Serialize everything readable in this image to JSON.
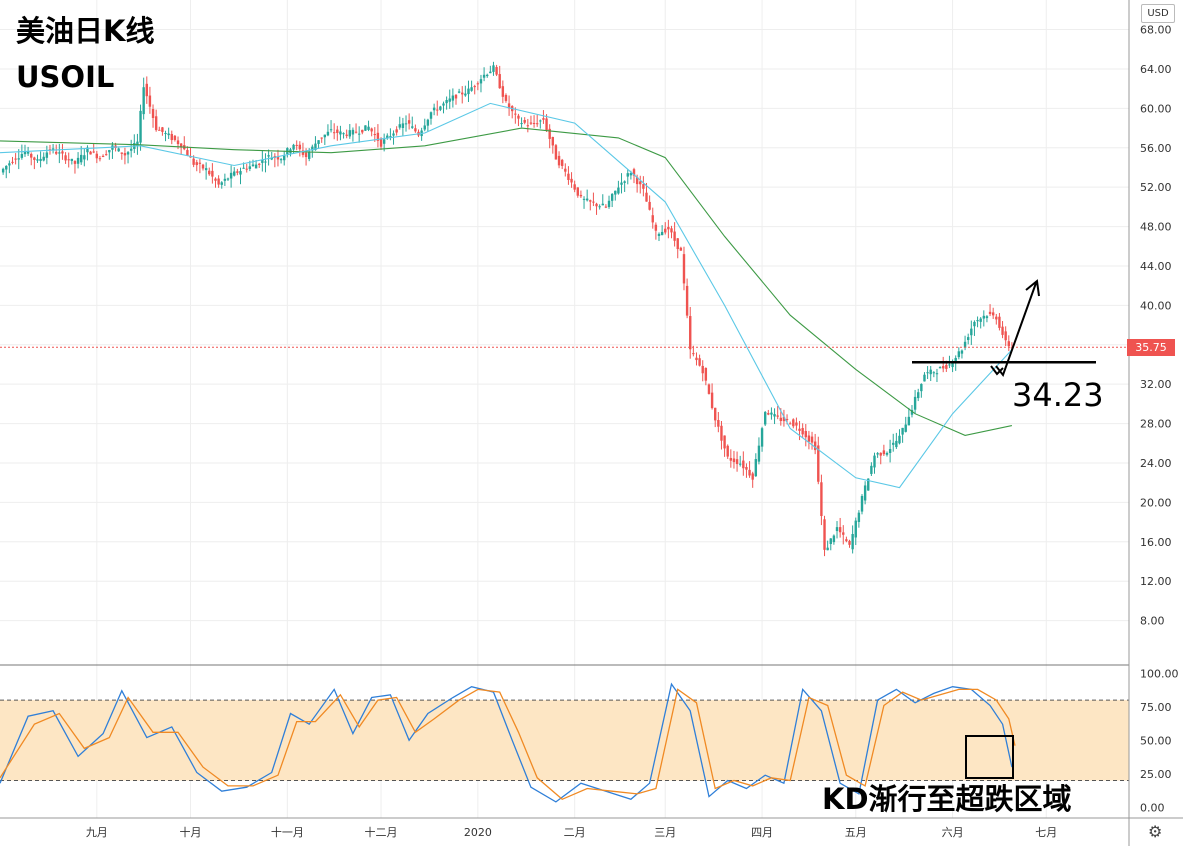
{
  "header": {
    "title": "美油日K线",
    "symbol": "USOIL"
  },
  "currency": "USD",
  "current_price": "35.75",
  "support_label": "34.23",
  "kd_note": "KD渐行至超跌区域",
  "settings_icon": "gear-icon",
  "colors": {
    "up": "#26a69a",
    "down": "#ef5350",
    "ma_fast": "#5bc8e6",
    "ma_slow": "#3d9a45",
    "k": "#2f7fd8",
    "d": "#f08a24",
    "band": "#fde6c4"
  },
  "chart_data": [
    {
      "type": "candlestick",
      "title": "美油日K线",
      "symbol": "USOIL",
      "x_ticks": [
        "九月",
        "十月",
        "十一月",
        "十二月",
        "2020",
        "二月",
        "三月",
        "四月",
        "五月",
        "六月",
        "七月"
      ],
      "y_ticks": [
        "8.00",
        "12.00",
        "16.00",
        "20.00",
        "24.00",
        "28.00",
        "32.00",
        "36.00",
        "40.00",
        "44.00",
        "48.00",
        "52.00",
        "56.00",
        "60.00",
        "64.00",
        "68.00"
      ],
      "ylim": [
        4,
        71
      ],
      "grid": true,
      "close_series": [
        [
          "2019-08-01",
          53.5
        ],
        [
          "2019-08-05",
          54.8
        ],
        [
          "2019-08-09",
          55.6
        ],
        [
          "2019-08-13",
          54.6
        ],
        [
          "2019-08-17",
          55.9
        ],
        [
          "2019-08-21",
          55.2
        ],
        [
          "2019-08-25",
          54.4
        ],
        [
          "2019-08-29",
          55.8
        ],
        [
          "2019-09-02",
          55.0
        ],
        [
          "2019-09-06",
          56.1
        ],
        [
          "2019-09-10",
          55.3
        ],
        [
          "2019-09-14",
          56.5
        ],
        [
          "2019-09-16",
          62.4
        ],
        [
          "2019-09-20",
          58.0
        ],
        [
          "2019-09-24",
          57.2
        ],
        [
          "2019-09-28",
          56.3
        ],
        [
          "2019-10-02",
          54.4
        ],
        [
          "2019-10-06",
          53.8
        ],
        [
          "2019-10-10",
          52.2
        ],
        [
          "2019-10-14",
          53.2
        ],
        [
          "2019-10-18",
          53.9
        ],
        [
          "2019-10-22",
          54.3
        ],
        [
          "2019-10-26",
          55.1
        ],
        [
          "2019-10-30",
          55.0
        ],
        [
          "2019-11-03",
          56.4
        ],
        [
          "2019-11-07",
          55.1
        ],
        [
          "2019-11-11",
          56.9
        ],
        [
          "2019-11-15",
          57.7
        ],
        [
          "2019-11-19",
          57.4
        ],
        [
          "2019-11-23",
          57.6
        ],
        [
          "2019-11-27",
          58.1
        ],
        [
          "2019-12-01",
          56.4
        ],
        [
          "2019-12-05",
          57.6
        ],
        [
          "2019-12-09",
          58.6
        ],
        [
          "2019-12-13",
          57.4
        ],
        [
          "2019-12-17",
          59.6
        ],
        [
          "2019-12-21",
          60.4
        ],
        [
          "2019-12-25",
          61.3
        ],
        [
          "2019-12-29",
          61.8
        ],
        [
          "2020-01-03",
          63.4
        ],
        [
          "2020-01-06",
          64.1
        ],
        [
          "2020-01-10",
          60.5
        ],
        [
          "2020-01-14",
          58.7
        ],
        [
          "2020-01-18",
          58.3
        ],
        [
          "2020-01-22",
          58.9
        ],
        [
          "2020-01-26",
          55.0
        ],
        [
          "2020-01-30",
          53.0
        ],
        [
          "2020-02-03",
          50.8
        ],
        [
          "2020-02-07",
          50.3
        ],
        [
          "2020-02-11",
          50.0
        ],
        [
          "2020-02-15",
          52.1
        ],
        [
          "2020-02-19",
          53.6
        ],
        [
          "2020-02-23",
          51.6
        ],
        [
          "2020-02-27",
          47.3
        ],
        [
          "2020-03-02",
          47.8
        ],
        [
          "2020-03-06",
          45.4
        ],
        [
          "2020-03-09",
          35.4
        ],
        [
          "2020-03-13",
          33.4
        ],
        [
          "2020-03-17",
          28.5
        ],
        [
          "2020-03-21",
          24.5
        ],
        [
          "2020-03-25",
          24.0
        ],
        [
          "2020-03-29",
          22.6
        ],
        [
          "2020-04-02",
          29.3
        ],
        [
          "2020-04-06",
          28.5
        ],
        [
          "2020-04-10",
          28.2
        ],
        [
          "2020-04-14",
          27.2
        ],
        [
          "2020-04-18",
          25.6
        ],
        [
          "2020-04-21",
          15.0
        ],
        [
          "2020-04-25",
          17.4
        ],
        [
          "2020-04-29",
          15.5
        ],
        [
          "2020-05-03",
          20.4
        ],
        [
          "2020-05-07",
          24.8
        ],
        [
          "2020-05-11",
          25.2
        ],
        [
          "2020-05-15",
          26.6
        ],
        [
          "2020-05-19",
          29.6
        ],
        [
          "2020-05-23",
          33.0
        ],
        [
          "2020-05-27",
          33.4
        ],
        [
          "2020-05-31",
          34.0
        ],
        [
          "2020-06-04",
          35.6
        ],
        [
          "2020-06-08",
          38.4
        ],
        [
          "2020-06-12",
          39.1
        ],
        [
          "2020-06-15",
          38.8
        ],
        [
          "2020-06-18",
          36.2
        ],
        [
          "2020-06-20",
          35.75
        ]
      ],
      "ma_fast": {
        "color": "#5bc8e6",
        "points": [
          [
            "2019-08-01",
            55.5
          ],
          [
            "2019-09-15",
            56.2
          ],
          [
            "2019-10-15",
            54.2
          ],
          [
            "2019-11-15",
            56.2
          ],
          [
            "2019-12-15",
            57.5
          ],
          [
            "2020-01-05",
            60.5
          ],
          [
            "2020-02-01",
            58.5
          ],
          [
            "2020-03-01",
            50.5
          ],
          [
            "2020-03-20",
            40.0
          ],
          [
            "2020-04-10",
            27.5
          ],
          [
            "2020-05-01",
            22.5
          ],
          [
            "2020-05-15",
            21.5
          ],
          [
            "2020-06-01",
            29.0
          ],
          [
            "2020-06-20",
            35.5
          ]
        ]
      },
      "ma_slow": {
        "color": "#3d9a45",
        "points": [
          [
            "2019-08-01",
            56.7
          ],
          [
            "2019-09-15",
            56.3
          ],
          [
            "2019-10-15",
            55.8
          ],
          [
            "2019-11-15",
            55.5
          ],
          [
            "2019-12-15",
            56.2
          ],
          [
            "2020-01-15",
            58.0
          ],
          [
            "2020-02-15",
            57.0
          ],
          [
            "2020-03-01",
            55.0
          ],
          [
            "2020-03-20",
            47.0
          ],
          [
            "2020-04-10",
            39.0
          ],
          [
            "2020-05-01",
            33.5
          ],
          [
            "2020-05-20",
            29.0
          ],
          [
            "2020-06-05",
            26.8
          ],
          [
            "2020-06-20",
            27.8
          ]
        ]
      },
      "support": {
        "value": 34.23,
        "label": "34.23"
      },
      "current_price_line": 35.75
    },
    {
      "type": "line",
      "indicator": "Stochastic (KD)",
      "y_ticks": [
        "0.00",
        "25.00",
        "50.00",
        "75.00",
        "100.00"
      ],
      "ylim": [
        -5,
        101
      ],
      "band": [
        20,
        80
      ],
      "series": [
        {
          "color": "#2f7fd8",
          "points": [
            [
              "2019-08-01",
              18
            ],
            [
              "2019-08-10",
              68
            ],
            [
              "2019-08-18",
              72
            ],
            [
              "2019-08-26",
              38
            ],
            [
              "2019-09-03",
              55
            ],
            [
              "2019-09-09",
              87
            ],
            [
              "2019-09-17",
              52
            ],
            [
              "2019-09-25",
              60
            ],
            [
              "2019-10-03",
              26
            ],
            [
              "2019-10-11",
              12
            ],
            [
              "2019-10-19",
              15
            ],
            [
              "2019-10-27",
              26
            ],
            [
              "2019-11-02",
              70
            ],
            [
              "2019-11-08",
              62
            ],
            [
              "2019-11-16",
              88
            ],
            [
              "2019-11-22",
              55
            ],
            [
              "2019-11-28",
              82
            ],
            [
              "2019-12-04",
              84
            ],
            [
              "2019-12-10",
              50
            ],
            [
              "2019-12-16",
              70
            ],
            [
              "2019-12-24",
              82
            ],
            [
              "2019-12-30",
              90
            ],
            [
              "2020-01-06",
              86
            ],
            [
              "2020-01-12",
              50
            ],
            [
              "2020-01-18",
              15
            ],
            [
              "2020-01-26",
              4
            ],
            [
              "2020-02-03",
              18
            ],
            [
              "2020-02-11",
              12
            ],
            [
              "2020-02-19",
              6
            ],
            [
              "2020-02-25",
              18
            ],
            [
              "2020-03-03",
              92
            ],
            [
              "2020-03-09",
              72
            ],
            [
              "2020-03-15",
              8
            ],
            [
              "2020-03-21",
              20
            ],
            [
              "2020-03-27",
              14
            ],
            [
              "2020-04-02",
              24
            ],
            [
              "2020-04-08",
              18
            ],
            [
              "2020-04-14",
              88
            ],
            [
              "2020-04-20",
              72
            ],
            [
              "2020-04-26",
              18
            ],
            [
              "2020-05-02",
              10
            ],
            [
              "2020-05-08",
              80
            ],
            [
              "2020-05-14",
              88
            ],
            [
              "2020-05-20",
              78
            ],
            [
              "2020-05-26",
              85
            ],
            [
              "2020-06-01",
              90
            ],
            [
              "2020-06-07",
              88
            ],
            [
              "2020-06-13",
              76
            ],
            [
              "2020-06-17",
              62
            ],
            [
              "2020-06-20",
              30
            ]
          ]
        },
        {
          "color": "#f08a24",
          "points": [
            [
              "2019-08-01",
              22
            ],
            [
              "2019-08-12",
              62
            ],
            [
              "2019-08-20",
              70
            ],
            [
              "2019-08-28",
              44
            ],
            [
              "2019-09-05",
              52
            ],
            [
              "2019-09-11",
              82
            ],
            [
              "2019-09-19",
              56
            ],
            [
              "2019-09-27",
              56
            ],
            [
              "2019-10-05",
              30
            ],
            [
              "2019-10-13",
              16
            ],
            [
              "2019-10-21",
              16
            ],
            [
              "2019-10-29",
              24
            ],
            [
              "2019-11-04",
              64
            ],
            [
              "2019-11-10",
              64
            ],
            [
              "2019-11-18",
              84
            ],
            [
              "2019-11-24",
              60
            ],
            [
              "2019-11-30",
              80
            ],
            [
              "2019-12-06",
              82
            ],
            [
              "2019-12-12",
              56
            ],
            [
              "2019-12-18",
              66
            ],
            [
              "2019-12-26",
              80
            ],
            [
              "2020-01-01",
              88
            ],
            [
              "2020-01-08",
              86
            ],
            [
              "2020-01-14",
              56
            ],
            [
              "2020-01-20",
              22
            ],
            [
              "2020-01-28",
              6
            ],
            [
              "2020-02-05",
              14
            ],
            [
              "2020-02-13",
              12
            ],
            [
              "2020-02-21",
              10
            ],
            [
              "2020-02-27",
              14
            ],
            [
              "2020-03-05",
              88
            ],
            [
              "2020-03-11",
              78
            ],
            [
              "2020-03-17",
              14
            ],
            [
              "2020-03-23",
              20
            ],
            [
              "2020-03-29",
              16
            ],
            [
              "2020-04-04",
              22
            ],
            [
              "2020-04-10",
              20
            ],
            [
              "2020-04-16",
              82
            ],
            [
              "2020-04-22",
              76
            ],
            [
              "2020-04-28",
              24
            ],
            [
              "2020-05-04",
              16
            ],
            [
              "2020-05-10",
              76
            ],
            [
              "2020-05-16",
              86
            ],
            [
              "2020-05-22",
              80
            ],
            [
              "2020-05-28",
              84
            ],
            [
              "2020-06-03",
              88
            ],
            [
              "2020-06-09",
              88
            ],
            [
              "2020-06-15",
              80
            ],
            [
              "2020-06-19",
              66
            ],
            [
              "2020-06-21",
              46
            ]
          ]
        }
      ]
    }
  ]
}
